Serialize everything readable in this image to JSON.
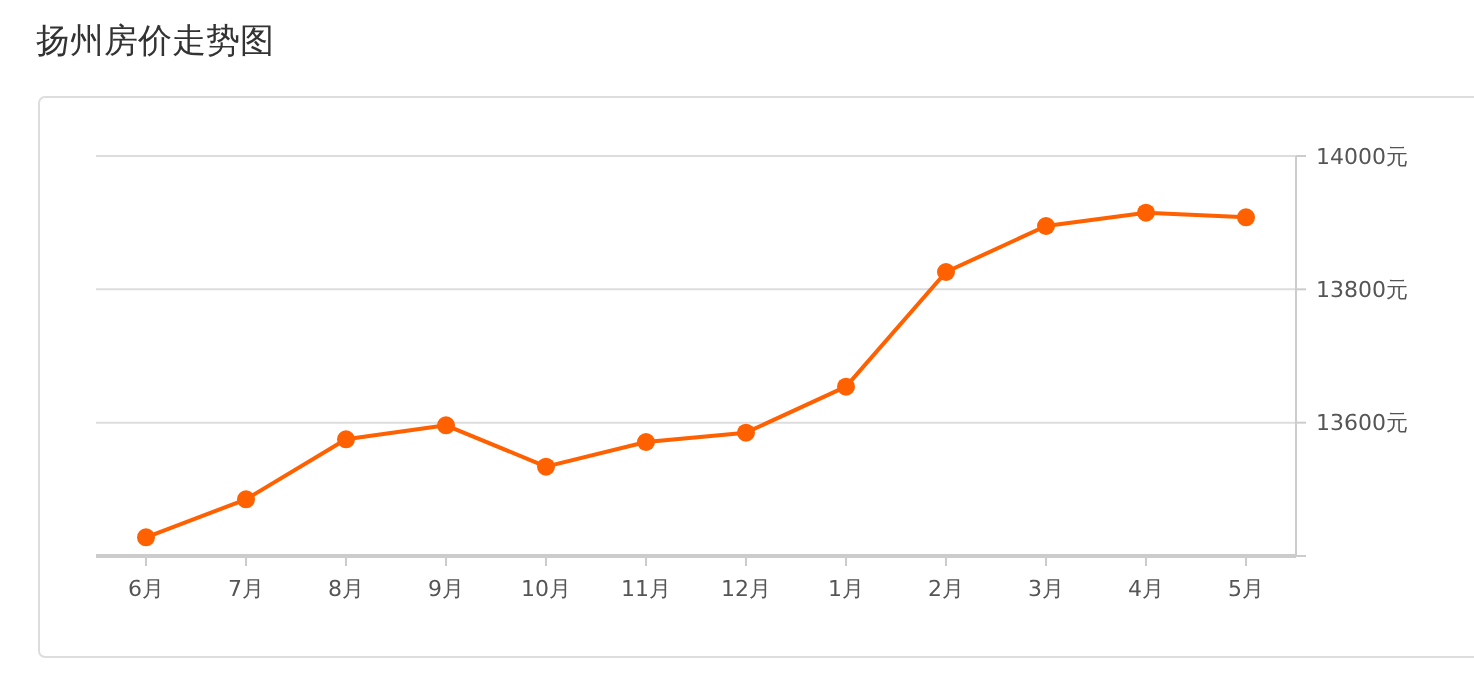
{
  "chart_data": {
    "type": "line",
    "title": "扬州房价走势图",
    "categories": [
      "6月",
      "7月",
      "8月",
      "9月",
      "10月",
      "11月",
      "12月",
      "1月",
      "2月",
      "3月",
      "4月",
      "5月"
    ],
    "series": [
      {
        "color": "#ff6000",
        "values": [
          13428,
          13485,
          13575,
          13596,
          13534,
          13571,
          13585,
          13654,
          13826,
          13895,
          13915,
          13908
        ]
      }
    ],
    "ylim": [
      13400,
      14000
    ],
    "yticks": [
      {
        "value": 13400,
        "label": null
      },
      {
        "value": 13600,
        "label": "13600元"
      },
      {
        "value": 13800,
        "label": "13800元"
      },
      {
        "value": 14000,
        "label": "14000元"
      }
    ],
    "grid": "y",
    "marker": "circle",
    "line_style": "solid"
  }
}
